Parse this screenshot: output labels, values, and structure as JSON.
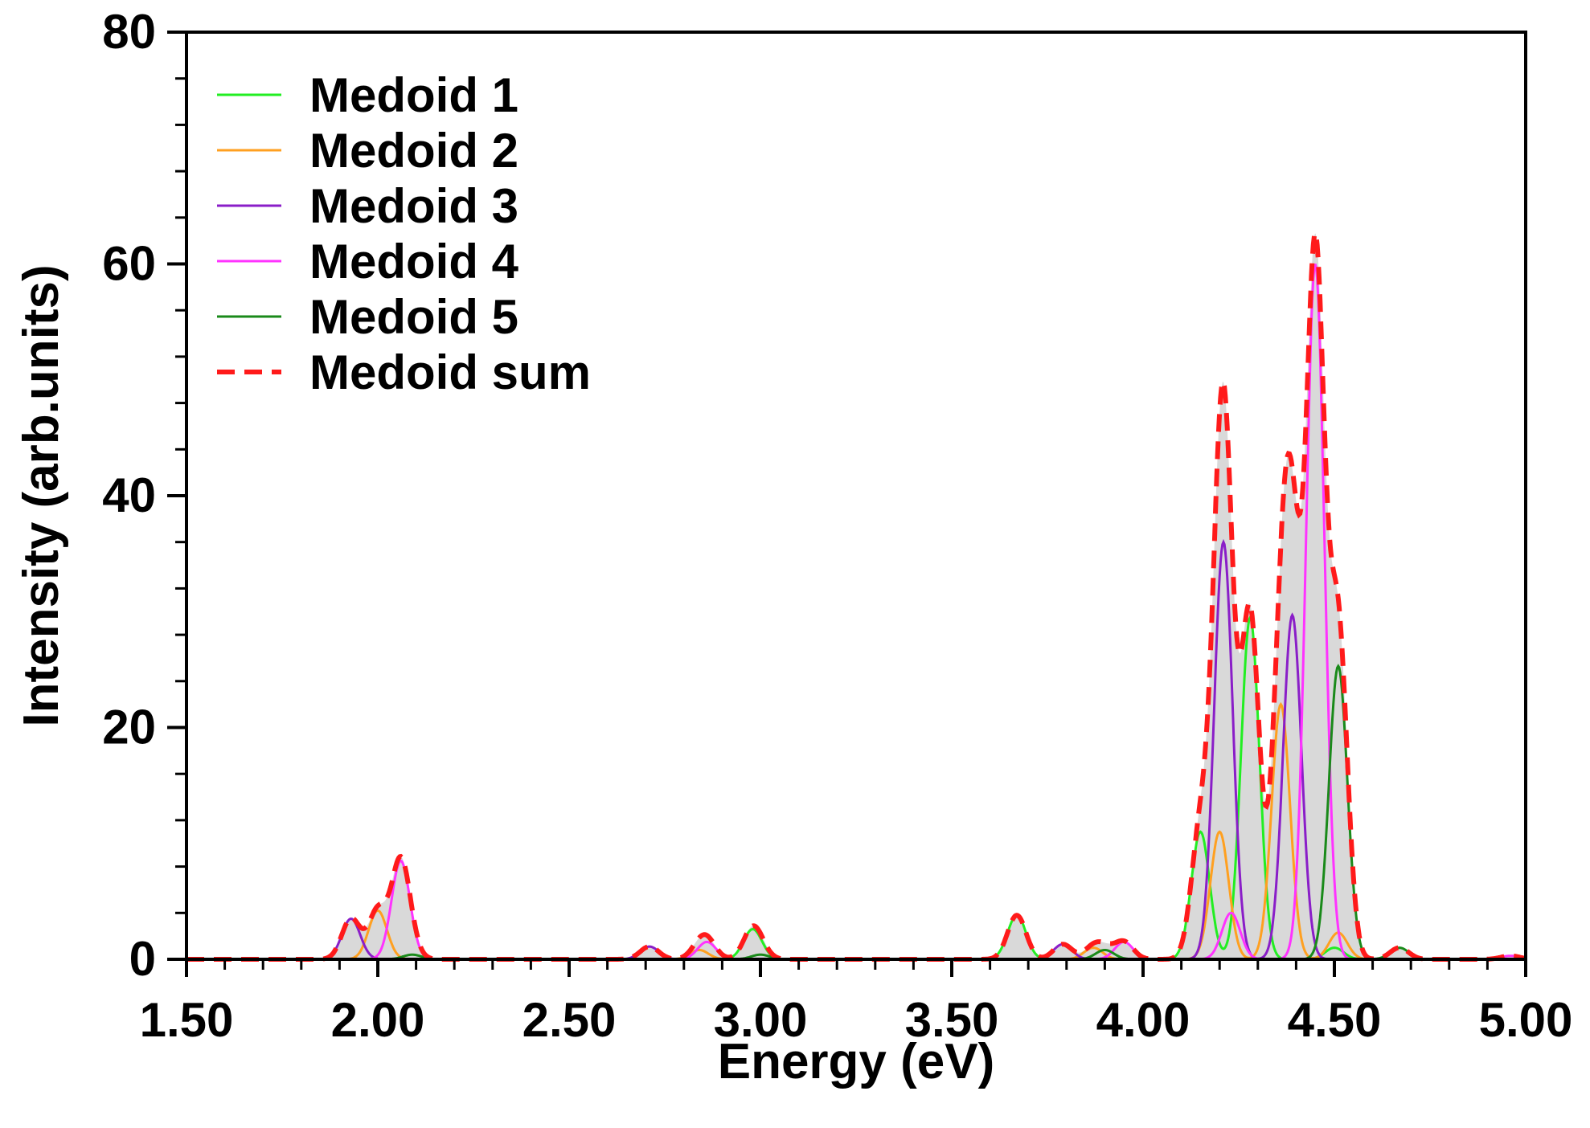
{
  "chart_data": {
    "type": "line",
    "title": "",
    "xlabel": "Energy (eV)",
    "ylabel": "Intensity (arb.units)",
    "xlim": [
      1.5,
      5.0
    ],
    "ylim": [
      0,
      80
    ],
    "x_ticks": [
      1.5,
      2.0,
      2.5,
      3.0,
      3.5,
      4.0,
      4.5,
      5.0
    ],
    "x_tick_labels": [
      "1.50",
      "2.00",
      "2.50",
      "3.00",
      "3.50",
      "4.00",
      "4.50",
      "5.00"
    ],
    "y_ticks": [
      0,
      20,
      40,
      60,
      80
    ],
    "y_tick_labels": [
      "0",
      "20",
      "40",
      "60",
      "80"
    ],
    "grid": false,
    "legend_position": "top-left",
    "sum_fill_color": "#d9d9d9",
    "peak_width": 0.024,
    "series": [
      {
        "name": "Medoid 1",
        "color": "#22ee22",
        "style": "solid",
        "peaks": [
          [
            2.98,
            2.6
          ],
          [
            3.67,
            3.8
          ],
          [
            4.15,
            11.0
          ],
          [
            4.28,
            29.5
          ],
          [
            4.5,
            1.0
          ]
        ]
      },
      {
        "name": "Medoid 2",
        "color": "#ffa020",
        "style": "solid",
        "peaks": [
          [
            2.0,
            4.2
          ],
          [
            2.84,
            0.8
          ],
          [
            3.87,
            1.0
          ],
          [
            4.2,
            11.0
          ],
          [
            4.36,
            22.0
          ],
          [
            4.51,
            2.3
          ]
        ]
      },
      {
        "name": "Medoid 3",
        "color": "#8a1ec8",
        "style": "solid",
        "peaks": [
          [
            1.93,
            3.5
          ],
          [
            2.71,
            1.1
          ],
          [
            3.79,
            1.3
          ],
          [
            4.21,
            36.0
          ],
          [
            4.39,
            29.7
          ]
        ]
      },
      {
        "name": "Medoid 4",
        "color": "#ff33ff",
        "style": "solid",
        "peaks": [
          [
            2.06,
            8.5
          ],
          [
            2.86,
            1.5
          ],
          [
            3.95,
            1.5
          ],
          [
            4.23,
            4.0
          ],
          [
            4.45,
            60.0
          ],
          [
            4.96,
            0.3
          ]
        ]
      },
      {
        "name": "Medoid 5",
        "color": "#1a8a1a",
        "style": "solid",
        "peaks": [
          [
            2.09,
            0.4
          ],
          [
            3.0,
            0.4
          ],
          [
            3.9,
            0.8
          ],
          [
            4.51,
            25.3
          ],
          [
            4.67,
            1.0
          ]
        ]
      },
      {
        "name": "Medoid sum",
        "color": "#ff1a1a",
        "style": "dashed",
        "sum": true
      }
    ]
  }
}
